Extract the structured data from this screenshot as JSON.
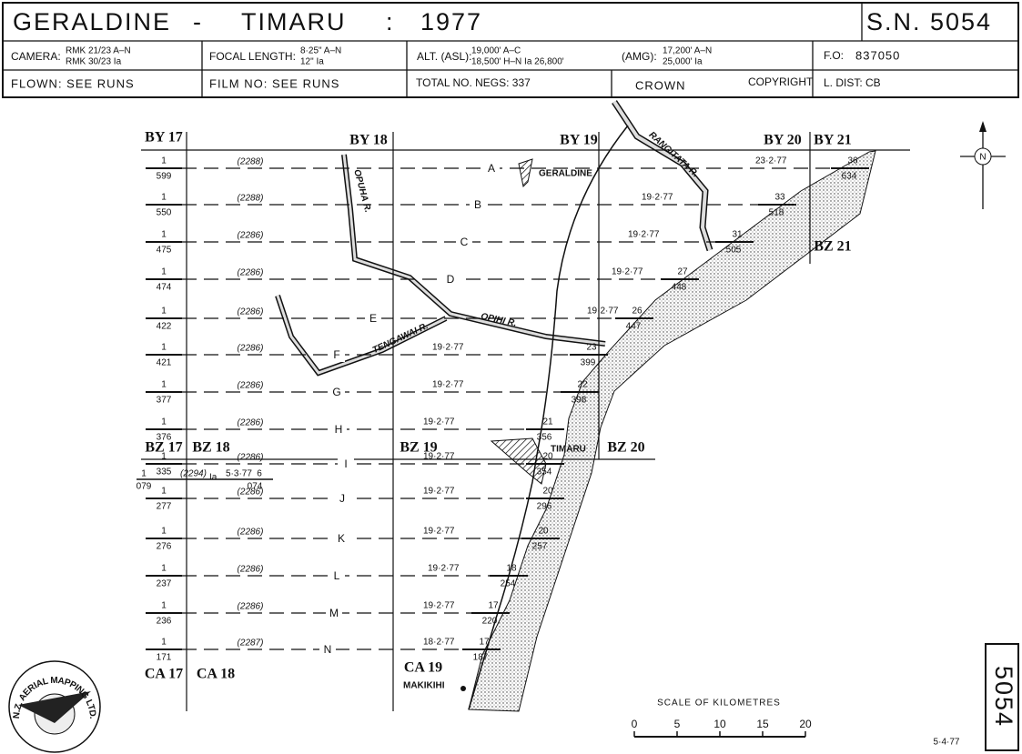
{
  "header": {
    "place1": "GERALDINE",
    "dash": "-",
    "place2": "TIMARU",
    "colon": ":",
    "year": "1977",
    "sheet": "S.N. 5054",
    "camera_label": "CAMERA:",
    "camera_1": "RMK 21/23  A–N",
    "camera_2": "RMK 30/23  Ia",
    "focal_label": "FOCAL LENGTH:",
    "focal_1": "8·25\"  A–N",
    "focal_2": "12\"  Ia",
    "alt_label": "ALT. (ASL):",
    "alt_1": "19,000' A–C",
    "alt_2": "18,500' H–N  Ia 26,800'",
    "amg_label": "(AMG):",
    "amg_1": "17,200'  A–N",
    "amg_2": "25,000'  Ia",
    "fo_label": "F.O:",
    "fo": "837050",
    "flown": "FLOWN: SEE   RUNS",
    "film": "FILM NO:  SEE   RUNS",
    "negs": "TOTAL NO. NEGS:  337",
    "crown": "CROWN",
    "copyright": "COPYRIGHT",
    "dist": "L. DIST:  CB"
  },
  "map": {
    "sheets": [
      "BY 17",
      "BY 18",
      "BY 19",
      "BY 20",
      "BY 21",
      "BZ 21",
      "BZ 17",
      "BZ 18",
      "BZ 19",
      "BZ 20",
      "CA 17",
      "CA 18",
      "CA 19"
    ],
    "runs": [
      {
        "letter": "A",
        "altitude": "(2288)",
        "start_count": "1",
        "start_frame": "599",
        "end_count": "36",
        "end_frame": "634",
        "date": "23·2·77"
      },
      {
        "letter": "B",
        "altitude": "(2288)",
        "start_count": "1",
        "start_frame": "550",
        "end_count": "33",
        "end_frame": "518",
        "date": "19·2·77"
      },
      {
        "letter": "C",
        "altitude": "(2286)",
        "start_count": "1",
        "start_frame": "475",
        "end_count": "31",
        "end_frame": "505",
        "date": "19·2·77"
      },
      {
        "letter": "D",
        "altitude": "(2286)",
        "start_count": "1",
        "start_frame": "474",
        "end_count": "27",
        "end_frame": "448",
        "date": "19·2·77"
      },
      {
        "letter": "E",
        "altitude": "(2286)",
        "start_count": "1",
        "start_frame": "422",
        "end_count": "26",
        "end_frame": "447",
        "date": "19·2·77"
      },
      {
        "letter": "F",
        "altitude": "(2286)",
        "start_count": "1",
        "start_frame": "421",
        "end_count": "23",
        "end_frame": "399",
        "date": "19·2·77"
      },
      {
        "letter": "G",
        "altitude": "(2286)",
        "start_count": "1",
        "start_frame": "377",
        "end_count": "22",
        "end_frame": "398",
        "date": "19·2·77"
      },
      {
        "letter": "H",
        "altitude": "(2286)",
        "start_count": "1",
        "start_frame": "376",
        "end_count": "21",
        "end_frame": "356",
        "date": "19·2·77"
      },
      {
        "letter": "I",
        "altitude": "(2286)",
        "start_count": "1",
        "start_frame": "335",
        "end_count": "20",
        "end_frame": "354",
        "date": "19·2·77"
      },
      {
        "letter": "Ia",
        "altitude": "(2294)",
        "start_count": "1",
        "start_frame": "079",
        "end_count": "6",
        "end_frame": "074",
        "date": "5·3·77"
      },
      {
        "letter": "J",
        "altitude": "(2286)",
        "start_count": "1",
        "start_frame": "277",
        "end_count": "20",
        "end_frame": "296",
        "date": "19·2·77"
      },
      {
        "letter": "K",
        "altitude": "(2286)",
        "start_count": "1",
        "start_frame": "276",
        "end_count": "20",
        "end_frame": "257",
        "date": "19·2·77"
      },
      {
        "letter": "L",
        "altitude": "(2286)",
        "start_count": "1",
        "start_frame": "237",
        "end_count": "18",
        "end_frame": "254",
        "date": "19·2·77"
      },
      {
        "letter": "M",
        "altitude": "(2286)",
        "start_count": "1",
        "start_frame": "236",
        "end_count": "17",
        "end_frame": "220",
        "date": "19·2·77"
      },
      {
        "letter": "N",
        "altitude": "(2287)",
        "start_count": "1",
        "start_frame": "171",
        "end_count": "17",
        "end_frame": "187",
        "date": "18·2·77"
      }
    ],
    "places": [
      "GERALDINE",
      "TIMARU",
      "MAKIKIHI"
    ],
    "rivers": [
      "OPUHA R.",
      "TENGAWAI R.",
      "OPIHI R.",
      "RANGITATA R."
    ],
    "north": "N",
    "scale_title": "SCALE     OF     KILOMETRES",
    "scale_ticks": [
      0,
      5,
      10,
      15,
      20
    ],
    "date": "5·4·77",
    "sheet_number": "5054",
    "logo": "N.Z. AERIAL MAPPING LTD."
  }
}
